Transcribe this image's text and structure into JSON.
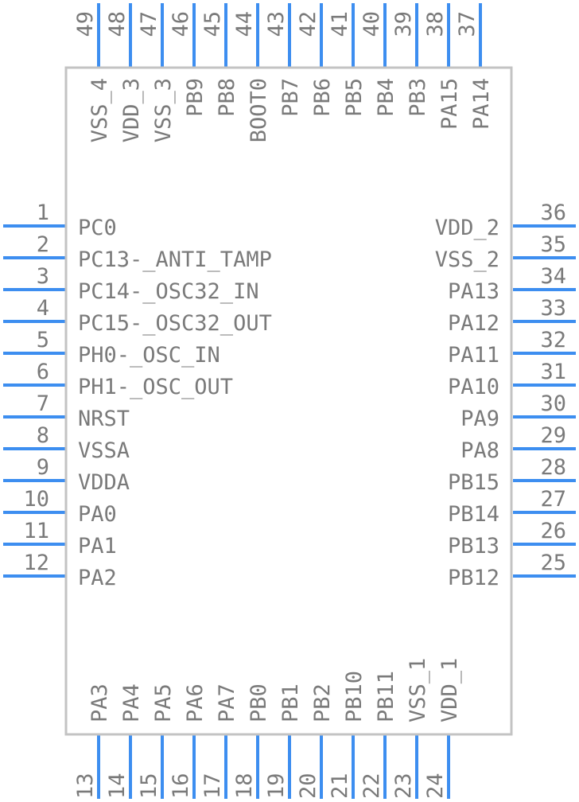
{
  "colors": {
    "pin": "#3d8ef0",
    "outline": "#c3c3c3",
    "text": "#7a7a7a",
    "background": "#ffffff"
  },
  "pins": {
    "left": [
      {
        "num": "1",
        "name": "PC0"
      },
      {
        "num": "2",
        "name": "PC13-_ANTI_TAMP"
      },
      {
        "num": "3",
        "name": "PC14-_OSC32_IN"
      },
      {
        "num": "4",
        "name": "PC15-_OSC32_OUT"
      },
      {
        "num": "5",
        "name": "PH0-_OSC_IN"
      },
      {
        "num": "6",
        "name": "PH1-_OSC_OUT"
      },
      {
        "num": "7",
        "name": "NRST"
      },
      {
        "num": "8",
        "name": "VSSA"
      },
      {
        "num": "9",
        "name": "VDDA"
      },
      {
        "num": "10",
        "name": "PA0"
      },
      {
        "num": "11",
        "name": "PA1"
      },
      {
        "num": "12",
        "name": "PA2"
      }
    ],
    "bottom": [
      {
        "num": "13",
        "name": "PA3"
      },
      {
        "num": "14",
        "name": "PA4"
      },
      {
        "num": "15",
        "name": "PA5"
      },
      {
        "num": "16",
        "name": "PA6"
      },
      {
        "num": "17",
        "name": "PA7"
      },
      {
        "num": "18",
        "name": "PB0"
      },
      {
        "num": "19",
        "name": "PB1"
      },
      {
        "num": "20",
        "name": "PB2"
      },
      {
        "num": "21",
        "name": "PB10"
      },
      {
        "num": "22",
        "name": "PB11"
      },
      {
        "num": "23",
        "name": "VSS_1"
      },
      {
        "num": "24",
        "name": "VDD_1"
      }
    ],
    "right": [
      {
        "num": "25",
        "name": "PB12"
      },
      {
        "num": "26",
        "name": "PB13"
      },
      {
        "num": "27",
        "name": "PB14"
      },
      {
        "num": "28",
        "name": "PB15"
      },
      {
        "num": "29",
        "name": "PA8"
      },
      {
        "num": "30",
        "name": "PA9"
      },
      {
        "num": "31",
        "name": "PA10"
      },
      {
        "num": "32",
        "name": "PA11"
      },
      {
        "num": "33",
        "name": "PA12"
      },
      {
        "num": "34",
        "name": "PA13"
      },
      {
        "num": "35",
        "name": "VSS_2"
      },
      {
        "num": "36",
        "name": "VDD_2"
      }
    ],
    "top": [
      {
        "num": "37",
        "name": "PA14"
      },
      {
        "num": "38",
        "name": "PA15"
      },
      {
        "num": "39",
        "name": "PB3"
      },
      {
        "num": "40",
        "name": "PB4"
      },
      {
        "num": "41",
        "name": "PB5"
      },
      {
        "num": "42",
        "name": "PB6"
      },
      {
        "num": "43",
        "name": "PB7"
      },
      {
        "num": "44",
        "name": "BOOT0"
      },
      {
        "num": "45",
        "name": "PB8"
      },
      {
        "num": "46",
        "name": "PB9"
      },
      {
        "num": "47",
        "name": "VSS_3"
      },
      {
        "num": "48",
        "name": "VDD_3"
      },
      {
        "num": "49",
        "name": "VSS_4"
      }
    ]
  }
}
